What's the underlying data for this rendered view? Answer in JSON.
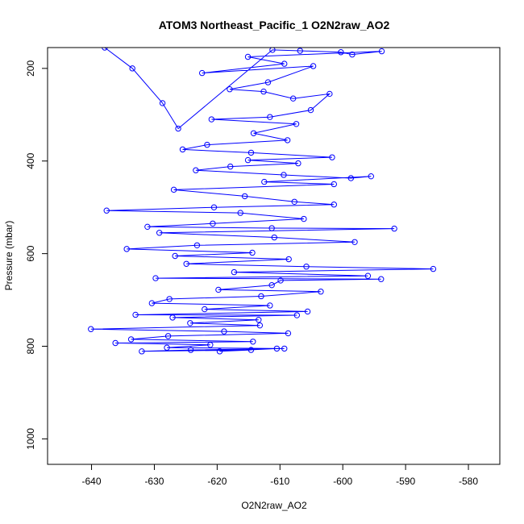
{
  "chart_data": {
    "type": "scatter",
    "title": "ATOM3 Northeast_Pacific_1 O2N2raw_AO2",
    "xlabel": "O2N2raw_AO2",
    "ylabel": "Pressure (mbar)",
    "xlim": [
      -647,
      -575
    ],
    "ylim": [
      1055,
      155
    ],
    "y_reversed": true,
    "x_ticks": [
      -640,
      -630,
      -620,
      -610,
      -600,
      -590,
      -580
    ],
    "y_ticks": [
      200,
      400,
      600,
      800,
      1000
    ],
    "grid": false,
    "legend": "none",
    "series_color": "#0000ff",
    "marker": "open-circle",
    "line": "connected",
    "series": [
      {
        "points": [
          [
            -637.9,
            155
          ],
          [
            -633.5,
            200
          ],
          [
            -628.7,
            275
          ],
          [
            -626.2,
            330
          ],
          [
            -611.2,
            160
          ],
          [
            -606.8,
            162
          ],
          [
            -600.3,
            165
          ],
          [
            -598.5,
            170
          ],
          [
            -593.8,
            163
          ],
          [
            -615.1,
            175
          ],
          [
            -609.3,
            190
          ],
          [
            -622.4,
            210
          ],
          [
            -604.7,
            195
          ],
          [
            -611.9,
            230
          ],
          [
            -618.0,
            245
          ],
          [
            -612.6,
            250
          ],
          [
            -607.9,
            265
          ],
          [
            -602.1,
            255
          ],
          [
            -605.1,
            290
          ],
          [
            -611.6,
            305
          ],
          [
            -620.9,
            310
          ],
          [
            -607.4,
            320
          ],
          [
            -614.2,
            340
          ],
          [
            -608.8,
            355
          ],
          [
            -621.6,
            365
          ],
          [
            -625.5,
            375
          ],
          [
            -614.6,
            382
          ],
          [
            -601.7,
            392
          ],
          [
            -615.1,
            398
          ],
          [
            -607.1,
            405
          ],
          [
            -617.9,
            412
          ],
          [
            -623.4,
            420
          ],
          [
            -609.4,
            430
          ],
          [
            -598.7,
            437
          ],
          [
            -595.5,
            433
          ],
          [
            -612.5,
            445
          ],
          [
            -601.4,
            450
          ],
          [
            -626.9,
            462
          ],
          [
            -615.6,
            476
          ],
          [
            -607.7,
            488
          ],
          [
            -601.4,
            494
          ],
          [
            -620.5,
            500
          ],
          [
            -637.6,
            507
          ],
          [
            -616.3,
            512
          ],
          [
            -606.2,
            525
          ],
          [
            -620.7,
            535
          ],
          [
            -631.1,
            542
          ],
          [
            -611.3,
            545
          ],
          [
            -591.8,
            546
          ],
          [
            -629.2,
            555
          ],
          [
            -610.9,
            565
          ],
          [
            -598.1,
            575
          ],
          [
            -623.2,
            582
          ],
          [
            -634.4,
            590
          ],
          [
            -614.4,
            598
          ],
          [
            -626.7,
            605
          ],
          [
            -608.6,
            612
          ],
          [
            -624.9,
            622
          ],
          [
            -605.8,
            628
          ],
          [
            -585.6,
            633
          ],
          [
            -617.3,
            640
          ],
          [
            -596.0,
            648
          ],
          [
            -629.8,
            653
          ],
          [
            -593.9,
            655
          ],
          [
            -609.9,
            658
          ],
          [
            -611.3,
            668
          ],
          [
            -619.8,
            678
          ],
          [
            -603.5,
            682
          ],
          [
            -613.0,
            692
          ],
          [
            -627.6,
            698
          ],
          [
            -630.4,
            707
          ],
          [
            -611.6,
            712
          ],
          [
            -622.0,
            720
          ],
          [
            -605.6,
            725
          ],
          [
            -633.0,
            732
          ],
          [
            -607.3,
            733
          ],
          [
            -627.1,
            738
          ],
          [
            -613.4,
            743
          ],
          [
            -624.3,
            750
          ],
          [
            -613.2,
            755
          ],
          [
            -640.1,
            763
          ],
          [
            -618.9,
            768
          ],
          [
            -608.7,
            772
          ],
          [
            -627.8,
            778
          ],
          [
            -633.7,
            785
          ],
          [
            -614.3,
            790
          ],
          [
            -636.2,
            793
          ],
          [
            -621.1,
            797
          ],
          [
            -628.0,
            803
          ],
          [
            -609.3,
            805
          ],
          [
            -624.2,
            808
          ],
          [
            -632.0,
            811
          ],
          [
            -614.6,
            808
          ],
          [
            -619.6,
            811
          ],
          [
            -610.5,
            805
          ]
        ]
      }
    ]
  }
}
